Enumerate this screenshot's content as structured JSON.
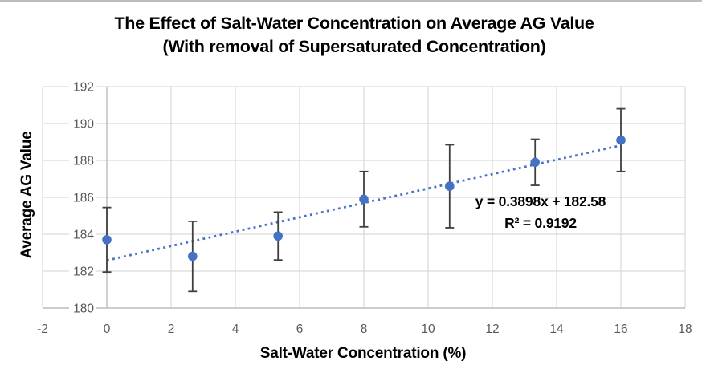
{
  "window": {
    "top_border_color": "#bdbdbd"
  },
  "title": {
    "line1": "The Effect of Salt-Water Concentration on Average AG Value",
    "line2": "(With removal of Supersaturated Concentration)"
  },
  "chart_data": {
    "type": "scatter",
    "title": "The Effect of Salt-Water Concentration on Average AG Value (With removal of Supersaturated Concentration)",
    "xlabel": "Salt-Water Concentration (%)",
    "ylabel": "Average AG Value",
    "xlim": [
      -2,
      18
    ],
    "ylim": [
      180,
      192
    ],
    "x_ticks": [
      -2,
      0,
      2,
      4,
      6,
      8,
      10,
      12,
      14,
      16,
      18
    ],
    "y_ticks": [
      180,
      182,
      184,
      186,
      188,
      190,
      192
    ],
    "grid": true,
    "legend": "none",
    "series": [
      {
        "name": "Average AG Value",
        "marker": "circle",
        "color": "#4472C4",
        "points": [
          {
            "x": 0,
            "y": 183.7,
            "error": 1.75
          },
          {
            "x": 2.67,
            "y": 182.8,
            "error": 1.9
          },
          {
            "x": 5.33,
            "y": 183.9,
            "error": 1.3
          },
          {
            "x": 8,
            "y": 185.9,
            "error": 1.5
          },
          {
            "x": 10.67,
            "y": 186.6,
            "error": 2.25
          },
          {
            "x": 13.33,
            "y": 187.9,
            "error": 1.25
          },
          {
            "x": 16,
            "y": 189.1,
            "error": 1.7
          }
        ]
      }
    ],
    "trendline": {
      "type": "linear",
      "style": "dotted",
      "color": "#4472C4",
      "slope": 0.3898,
      "intercept": 182.58,
      "x_start": 0,
      "x_end": 16,
      "equation_label": "y = 0.3898x + 182.58",
      "r_squared_label": "R² = 0.9192"
    },
    "colors": {
      "gridline": "#D9D9D9",
      "axis_line": "#BFBFBF",
      "tick_label": "#595959",
      "error_bar": "#404040"
    }
  }
}
